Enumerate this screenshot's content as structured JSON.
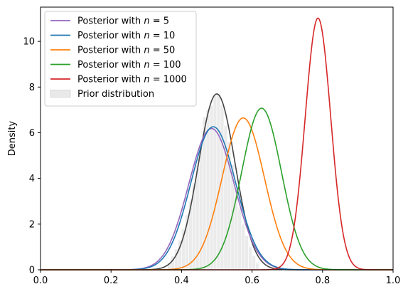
{
  "chart_data": {
    "type": "line",
    "title": "",
    "xlabel": "",
    "ylabel": "Density",
    "xlim": [
      0.0,
      1.0
    ],
    "ylim": [
      0,
      11.5
    ],
    "xticks": [
      "0.0",
      "0.2",
      "0.4",
      "0.6",
      "0.8",
      "1.0"
    ],
    "xtick_values": [
      0.0,
      0.2,
      0.4,
      0.6,
      0.8,
      1.0
    ],
    "yticks": [
      "0",
      "2",
      "4",
      "6",
      "8",
      "10"
    ],
    "ytick_values": [
      0,
      2,
      4,
      6,
      8,
      10
    ],
    "grid": false,
    "legend_position": "top-left",
    "series": [
      {
        "name": "Posterior with n = 5",
        "legend_prefix": "Posterior with ",
        "legend_var": "n",
        "legend_suffix": " = 5",
        "color": "#9467bd",
        "mean": 0.485,
        "sd": 0.0645
      },
      {
        "name": "Posterior with n = 10",
        "legend_prefix": "Posterior with ",
        "legend_var": "n",
        "legend_suffix": " = 10",
        "color": "#1f77b4",
        "mean": 0.49,
        "sd": 0.0637
      },
      {
        "name": "Posterior with n = 50",
        "legend_prefix": "Posterior with ",
        "legend_var": "n",
        "legend_suffix": " = 50",
        "color": "#ff7f0e",
        "mean": 0.575,
        "sd": 0.06
      },
      {
        "name": "Posterior with n = 100",
        "legend_prefix": "Posterior with ",
        "legend_var": "n",
        "legend_suffix": " = 100",
        "color": "#2ca02c",
        "mean": 0.627,
        "sd": 0.0564
      },
      {
        "name": "Posterior with n = 1000",
        "legend_prefix": "Posterior with ",
        "legend_var": "n",
        "legend_suffix": " = 1000",
        "color": "#d62728",
        "mean": 0.787,
        "sd": 0.0362
      }
    ],
    "prior_kde": {
      "color": "#444444",
      "mean": 0.5,
      "sd": 0.0518,
      "peak": 7.7
    },
    "prior_histogram": {
      "name": "Prior distribution",
      "color": "#d3d3d3",
      "bins": [
        {
          "x0": 0.36,
          "x1": 0.37,
          "y": 0.3
        },
        {
          "x0": 0.37,
          "x1": 0.38,
          "y": 0.6
        },
        {
          "x0": 0.38,
          "x1": 0.39,
          "y": 0.9
        },
        {
          "x0": 0.39,
          "x1": 0.4,
          "y": 1.3
        },
        {
          "x0": 0.4,
          "x1": 0.41,
          "y": 1.8
        },
        {
          "x0": 0.41,
          "x1": 0.42,
          "y": 2.4
        },
        {
          "x0": 0.42,
          "x1": 0.43,
          "y": 3.0
        },
        {
          "x0": 0.43,
          "x1": 0.44,
          "y": 3.8
        },
        {
          "x0": 0.44,
          "x1": 0.45,
          "y": 4.6
        },
        {
          "x0": 0.45,
          "x1": 0.46,
          "y": 5.3
        },
        {
          "x0": 0.46,
          "x1": 0.47,
          "y": 6.7
        },
        {
          "x0": 0.47,
          "x1": 0.48,
          "y": 7.0
        },
        {
          "x0": 0.48,
          "x1": 0.49,
          "y": 7.2
        },
        {
          "x0": 0.49,
          "x1": 0.5,
          "y": 7.6
        },
        {
          "x0": 0.5,
          "x1": 0.51,
          "y": 7.7
        },
        {
          "x0": 0.51,
          "x1": 0.52,
          "y": 7.2
        },
        {
          "x0": 0.52,
          "x1": 0.53,
          "y": 6.3
        },
        {
          "x0": 0.53,
          "x1": 0.54,
          "y": 5.6
        },
        {
          "x0": 0.54,
          "x1": 0.55,
          "y": 4.6
        },
        {
          "x0": 0.55,
          "x1": 0.56,
          "y": 3.5
        },
        {
          "x0": 0.56,
          "x1": 0.57,
          "y": 2.7
        },
        {
          "x0": 0.57,
          "x1": 0.58,
          "y": 2.0
        },
        {
          "x0": 0.58,
          "x1": 0.59,
          "y": 1.5
        },
        {
          "x0": 0.59,
          "x1": 0.6,
          "y": 1.0
        },
        {
          "x0": 0.6,
          "x1": 0.61,
          "y": 0.6
        },
        {
          "x0": 0.61,
          "x1": 0.62,
          "y": 0.3
        }
      ]
    }
  }
}
